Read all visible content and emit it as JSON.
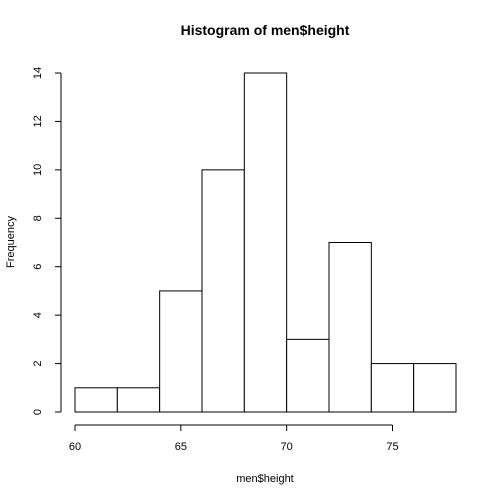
{
  "chart_data": {
    "type": "bar",
    "title": "Histogram of men$height",
    "xlabel": "men$height",
    "ylabel": "Frequency",
    "bins": [
      {
        "from": 60,
        "to": 62,
        "count": 1
      },
      {
        "from": 62,
        "to": 64,
        "count": 1
      },
      {
        "from": 64,
        "to": 66,
        "count": 5
      },
      {
        "from": 66,
        "to": 68,
        "count": 10
      },
      {
        "from": 68,
        "to": 70,
        "count": 14
      },
      {
        "from": 70,
        "to": 72,
        "count": 3
      },
      {
        "from": 72,
        "to": 74,
        "count": 7
      },
      {
        "from": 74,
        "to": 76,
        "count": 2
      },
      {
        "from": 76,
        "to": 78,
        "count": 2
      }
    ],
    "x_ticks": [
      "60",
      "65",
      "70",
      "75"
    ],
    "y_ticks": [
      "0",
      "2",
      "4",
      "6",
      "8",
      "10",
      "12",
      "14"
    ],
    "xlim": [
      60,
      78
    ],
    "ylim": [
      0,
      14
    ],
    "grid": false,
    "legend": "none",
    "colors": {
      "bar_fill": "#ffffff",
      "bar_stroke": "#000000",
      "axis": "#000000",
      "text": "#000000"
    }
  }
}
